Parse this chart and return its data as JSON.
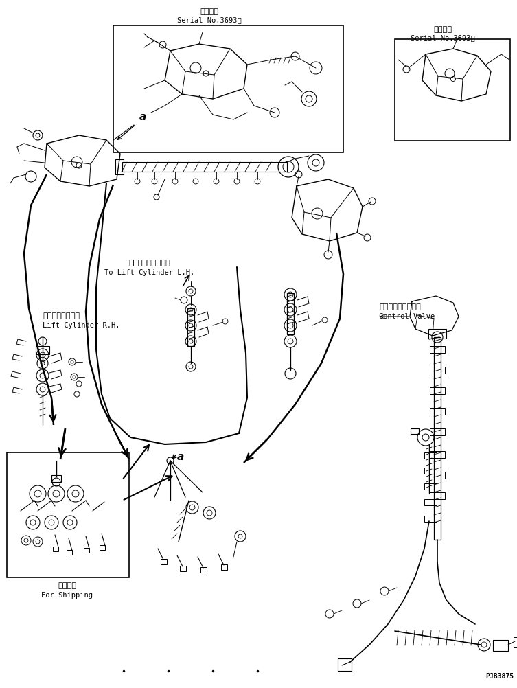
{
  "title_jp1": "適用号機",
  "title_en1": "Serial No.3693～",
  "title_jp2": "適用号機",
  "title_en2": "Serial No.3693～",
  "label_lift_r_jp": "リフトシリンダ右",
  "label_lift_r_en": "Lift Cylinder R.H.",
  "label_lift_l_jp": "リフトシリンダ左へ",
  "label_lift_l_en": "To Lift Cylinder L.H.",
  "label_control_jp": "コントロールバルブ",
  "label_control_en": "Control Valve",
  "label_ship_jp": "連携部品",
  "label_ship_en": "For Shipping",
  "label_a1": "a",
  "label_a2": "a",
  "part_number": "PJB3875",
  "bg_color": "#ffffff",
  "line_color": "#000000",
  "text_color": "#000000",
  "font_size_jp": 8,
  "font_size_en": 7.5,
  "font_size_a": 11,
  "font_size_pn": 7
}
